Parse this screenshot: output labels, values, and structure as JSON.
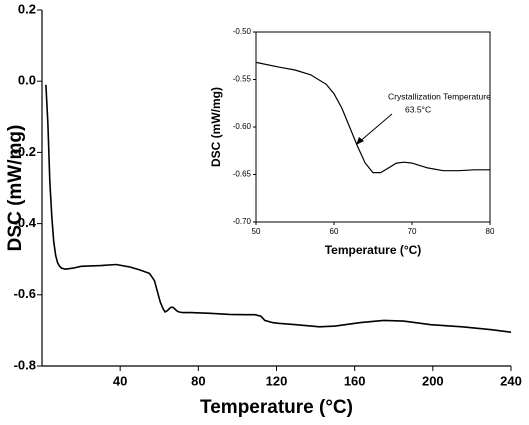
{
  "chart_data": [
    {
      "type": "line",
      "xlabel": "Temperature (°C)",
      "ylabel": "DSC (mW/mg)",
      "color": "#000000",
      "xlim": [
        0,
        240
      ],
      "xticks": [
        40,
        80,
        120,
        160,
        200,
        240
      ],
      "ylim": [
        -0.8,
        0.2
      ],
      "yticks": [
        -0.8,
        -0.6,
        -0.4,
        -0.2,
        {
          "value": 0,
          "label": "0.0"
        },
        0.2
      ],
      "x": [
        2,
        3,
        4,
        5,
        6,
        7,
        8,
        9,
        10,
        12,
        16,
        20,
        30,
        38,
        45,
        50,
        55,
        57.5,
        59,
        60.5,
        62,
        63,
        64,
        65,
        66,
        67,
        68,
        69,
        70,
        72,
        76,
        86,
        96,
        104,
        109,
        112,
        114,
        118,
        121,
        130,
        142,
        150,
        163,
        175,
        185,
        199,
        215,
        230,
        240
      ],
      "values": [
        -0.01,
        -0.12,
        -0.28,
        -0.38,
        -0.45,
        -0.49,
        -0.51,
        -0.52,
        -0.525,
        -0.528,
        -0.525,
        -0.52,
        -0.518,
        -0.515,
        -0.522,
        -0.53,
        -0.54,
        -0.56,
        -0.59,
        -0.62,
        -0.64,
        -0.648,
        -0.645,
        -0.64,
        -0.635,
        -0.635,
        -0.64,
        -0.645,
        -0.648,
        -0.65,
        -0.65,
        -0.652,
        -0.655,
        -0.656,
        -0.656,
        -0.66,
        -0.672,
        -0.678,
        -0.68,
        -0.684,
        -0.69,
        -0.688,
        -0.678,
        -0.672,
        -0.674,
        -0.684,
        -0.69,
        -0.698,
        -0.705
      ]
    },
    {
      "type": "line",
      "xlabel": "Temperature (°C)",
      "ylabel": "DSC (mW/mg)",
      "color": "#000000",
      "xlim": [
        50,
        80
      ],
      "xticks": [
        50,
        60,
        70,
        80
      ],
      "ylim": [
        -0.7,
        -0.5
      ],
      "yticks": [
        {
          "value": -0.7,
          "label": "-0.70"
        },
        {
          "value": -0.65,
          "label": "-0.65"
        },
        {
          "value": -0.6,
          "label": "-0.60"
        },
        {
          "value": -0.55,
          "label": "-0.55"
        },
        {
          "value": -0.5,
          "label": "-0.50"
        }
      ],
      "x": [
        50,
        53,
        55,
        57,
        59,
        60,
        61,
        62,
        63,
        64,
        65,
        66,
        67,
        68,
        69,
        70,
        72,
        74,
        76,
        78,
        80
      ],
      "values": [
        -0.532,
        -0.537,
        -0.54,
        -0.545,
        -0.555,
        -0.565,
        -0.58,
        -0.6,
        -0.62,
        -0.638,
        -0.648,
        -0.648,
        -0.643,
        -0.638,
        -0.637,
        -0.638,
        -0.643,
        -0.646,
        -0.646,
        -0.645,
        -0.645
      ],
      "annotations": [
        "Crystallization Temperature",
        "63.5°C"
      ]
    }
  ]
}
